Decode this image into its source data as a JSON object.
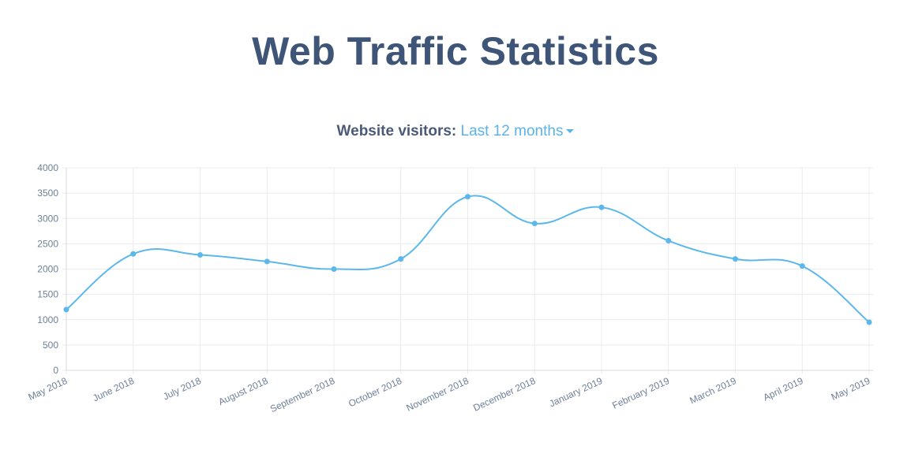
{
  "chart_data": {
    "type": "line",
    "title": "Web Traffic Statistics",
    "subtitle": "Website visitors:",
    "period_selector": "Last 12 months",
    "categories": [
      "May 2018",
      "June 2018",
      "July 2018",
      "August 2018",
      "September 2018",
      "October 2018",
      "November 2018",
      "December 2018",
      "January 2019",
      "February 2019",
      "March 2019",
      "April 2019",
      "May 2019"
    ],
    "series": [
      {
        "color": "#5cb8ea",
        "values": [
          1200,
          2300,
          2280,
          2150,
          2000,
          2200,
          3430,
          2900,
          3220,
          2560,
          2200,
          2060,
          950
        ]
      }
    ],
    "ylim": [
      0,
      4000
    ],
    "yticks": [
      0,
      500,
      1000,
      1500,
      2000,
      2500,
      3000,
      3500,
      4000
    ],
    "grid": true
  }
}
